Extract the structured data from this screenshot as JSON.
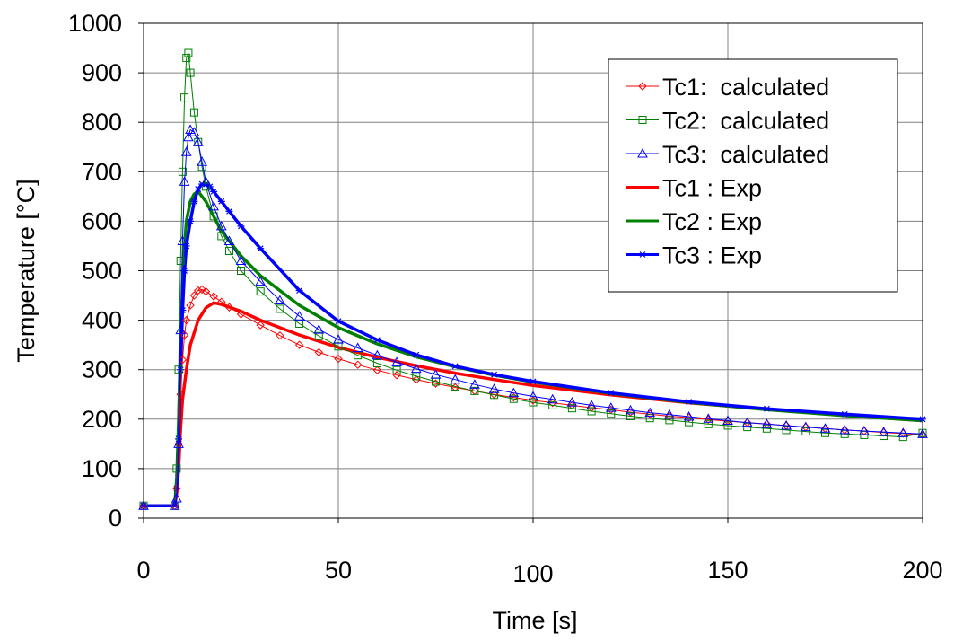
{
  "chart_data": {
    "type": "line",
    "xlabel": "Time [s]",
    "ylabel": "Temperature [°C]",
    "xlim": [
      0,
      200
    ],
    "ylim": [
      0,
      1000
    ],
    "xticks": [
      "0",
      "50",
      "100",
      "150",
      "200"
    ],
    "yticks": [
      "0",
      "100",
      "200",
      "300",
      "400",
      "500",
      "600",
      "700",
      "800",
      "900",
      "1000"
    ],
    "grid": true,
    "legend_position": "top-right",
    "series": [
      {
        "name": "Tc1:  calculated",
        "color": "#ff0000",
        "marker": "diamond",
        "x": [
          0,
          8,
          8.5,
          9,
          9.5,
          10,
          10.5,
          11,
          12,
          13,
          14,
          15,
          16,
          18,
          20,
          22,
          25,
          30,
          35,
          40,
          45,
          50,
          55,
          60,
          65,
          70,
          75,
          80,
          85,
          90,
          95,
          100,
          105,
          110,
          115,
          120,
          125,
          130,
          135,
          140,
          145,
          150,
          155,
          160,
          165,
          170,
          175,
          180,
          185,
          190,
          195,
          200
        ],
        "y": [
          25,
          25,
          60,
          150,
          250,
          320,
          370,
          400,
          430,
          450,
          460,
          462,
          458,
          448,
          437,
          426,
          412,
          390,
          369,
          350,
          335,
          322,
          310,
          299,
          289,
          280,
          272,
          264,
          257,
          250,
          244,
          238,
          233,
          228,
          223,
          219,
          214,
          210,
          206,
          203,
          199,
          196,
          193,
          190,
          187,
          184,
          181,
          178,
          176,
          173,
          171,
          168
        ]
      },
      {
        "name": "Tc2:  calculated",
        "color": "#008000",
        "marker": "square",
        "x": [
          0,
          8,
          8.5,
          9,
          9.5,
          10,
          10.5,
          11,
          11.5,
          12,
          13,
          14,
          15,
          16,
          18,
          20,
          22,
          25,
          30,
          35,
          40,
          45,
          50,
          55,
          60,
          65,
          70,
          75,
          80,
          85,
          90,
          95,
          100,
          105,
          110,
          115,
          120,
          125,
          130,
          135,
          140,
          145,
          150,
          155,
          160,
          165,
          170,
          175,
          180,
          185,
          190,
          195,
          200
        ],
        "y": [
          25,
          25,
          100,
          300,
          520,
          700,
          850,
          930,
          940,
          900,
          820,
          760,
          710,
          670,
          610,
          570,
          540,
          500,
          458,
          423,
          393,
          368,
          347,
          329,
          313,
          299,
          287,
          276,
          266,
          257,
          249,
          241,
          234,
          228,
          222,
          216,
          211,
          206,
          202,
          198,
          194,
          190,
          187,
          184,
          181,
          178,
          175,
          172,
          170,
          168,
          166,
          164,
          172
        ]
      },
      {
        "name": "Tc3:  calculated",
        "color": "#0000ff",
        "marker": "triangle",
        "x": [
          0,
          8,
          8.5,
          9,
          9.5,
          10,
          10.5,
          11,
          11.5,
          12,
          13,
          14,
          15,
          16,
          18,
          20,
          22,
          25,
          30,
          35,
          40,
          45,
          50,
          55,
          60,
          65,
          70,
          75,
          80,
          85,
          90,
          95,
          100,
          105,
          110,
          115,
          120,
          125,
          130,
          135,
          140,
          145,
          150,
          155,
          160,
          165,
          170,
          175,
          180,
          185,
          190,
          195,
          200
        ],
        "y": [
          25,
          25,
          40,
          150,
          380,
          560,
          680,
          740,
          770,
          785,
          780,
          760,
          720,
          680,
          630,
          590,
          560,
          520,
          478,
          440,
          408,
          381,
          361,
          344,
          329,
          315,
          302,
          290,
          280,
          270,
          261,
          253,
          246,
          240,
          234,
          228,
          223,
          218,
          213,
          209,
          205,
          201,
          197,
          193,
          190,
          187,
          184,
          181,
          178,
          176,
          174,
          172,
          170
        ]
      },
      {
        "name": "Tc1 : Exp",
        "color": "#ff0000",
        "marker": "none",
        "x": [
          0,
          8,
          8.5,
          9,
          9.5,
          10,
          11,
          12,
          14,
          16,
          18,
          20,
          25,
          30,
          35,
          40,
          50,
          60,
          70,
          80,
          90,
          100,
          120,
          140,
          160,
          180,
          200
        ],
        "y": [
          25,
          25,
          50,
          100,
          180,
          240,
          300,
          350,
          400,
          425,
          435,
          432,
          418,
          400,
          385,
          370,
          345,
          325,
          308,
          293,
          280,
          268,
          249,
          233,
          220,
          208,
          197
        ]
      },
      {
        "name": "Tc2 : Exp",
        "color": "#008000",
        "marker": "none",
        "x": [
          0,
          8,
          8.5,
          9,
          9.5,
          10,
          10.5,
          11,
          12,
          13,
          14,
          15,
          16,
          18,
          20,
          22,
          25,
          30,
          40,
          50,
          60,
          70,
          80,
          90,
          100,
          120,
          140,
          160,
          180,
          200
        ],
        "y": [
          25,
          25,
          80,
          200,
          350,
          470,
          550,
          600,
          640,
          655,
          660,
          650,
          640,
          610,
          580,
          560,
          530,
          490,
          430,
          385,
          352,
          326,
          306,
          289,
          275,
          252,
          234,
          219,
          207,
          197
        ]
      },
      {
        "name": "Tc3 : Exp",
        "color": "#0000ff",
        "marker": "star",
        "x": [
          0,
          8,
          8.5,
          9,
          9.5,
          10,
          10.5,
          11,
          12,
          13,
          14,
          15,
          16,
          17,
          18,
          20,
          22,
          25,
          30,
          40,
          50,
          60,
          70,
          80,
          90,
          100,
          120,
          140,
          160,
          180,
          200
        ],
        "y": [
          25,
          25,
          60,
          160,
          300,
          420,
          500,
          550,
          600,
          640,
          665,
          675,
          675,
          670,
          660,
          640,
          620,
          590,
          545,
          460,
          398,
          360,
          330,
          307,
          290,
          276,
          253,
          235,
          221,
          210,
          200
        ]
      }
    ]
  }
}
